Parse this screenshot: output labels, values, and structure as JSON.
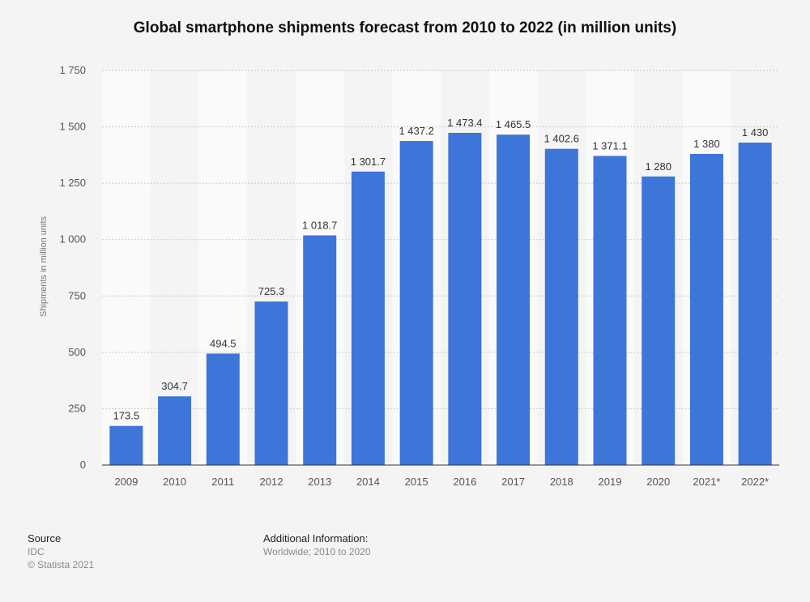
{
  "title": "Global smartphone shipments forecast from 2010 to 2022 (in million units)",
  "chart_data": {
    "type": "bar",
    "title": "Global smartphone shipments forecast from 2010 to 2022 (in million units)",
    "xlabel": "",
    "ylabel": "Shipments in million units",
    "categories": [
      "2009",
      "2010",
      "2011",
      "2012",
      "2013",
      "2014",
      "2015",
      "2016",
      "2017",
      "2018",
      "2019",
      "2020",
      "2021*",
      "2022*"
    ],
    "values": [
      173.5,
      304.7,
      494.5,
      725.3,
      1018.7,
      1301.7,
      1437.2,
      1473.4,
      1465.5,
      1402.6,
      1371.1,
      1280,
      1380,
      1430
    ],
    "value_labels": [
      "173.5",
      "304.7",
      "494.5",
      "725.3",
      "1 018.7",
      "1 301.7",
      "1 437.2",
      "1 473.4",
      "1 465.5",
      "1 402.6",
      "1 371.1",
      "1 280",
      "1 380",
      "1 430"
    ],
    "ylim": [
      0,
      1750
    ],
    "yticks": [
      0,
      250,
      500,
      750,
      1000,
      1250,
      1500,
      1750
    ],
    "ytick_labels": [
      "0",
      "250",
      "500",
      "750",
      "1 000",
      "1 250",
      "1 500",
      "1 750"
    ],
    "grid": true,
    "bar_color": "#3d75d9"
  },
  "footer": {
    "source_heading": "Source",
    "source_name": "IDC",
    "copyright": "© Statista 2021",
    "info_heading": "Additional Information:",
    "info_text": "Worldwide; 2010 to 2020"
  }
}
